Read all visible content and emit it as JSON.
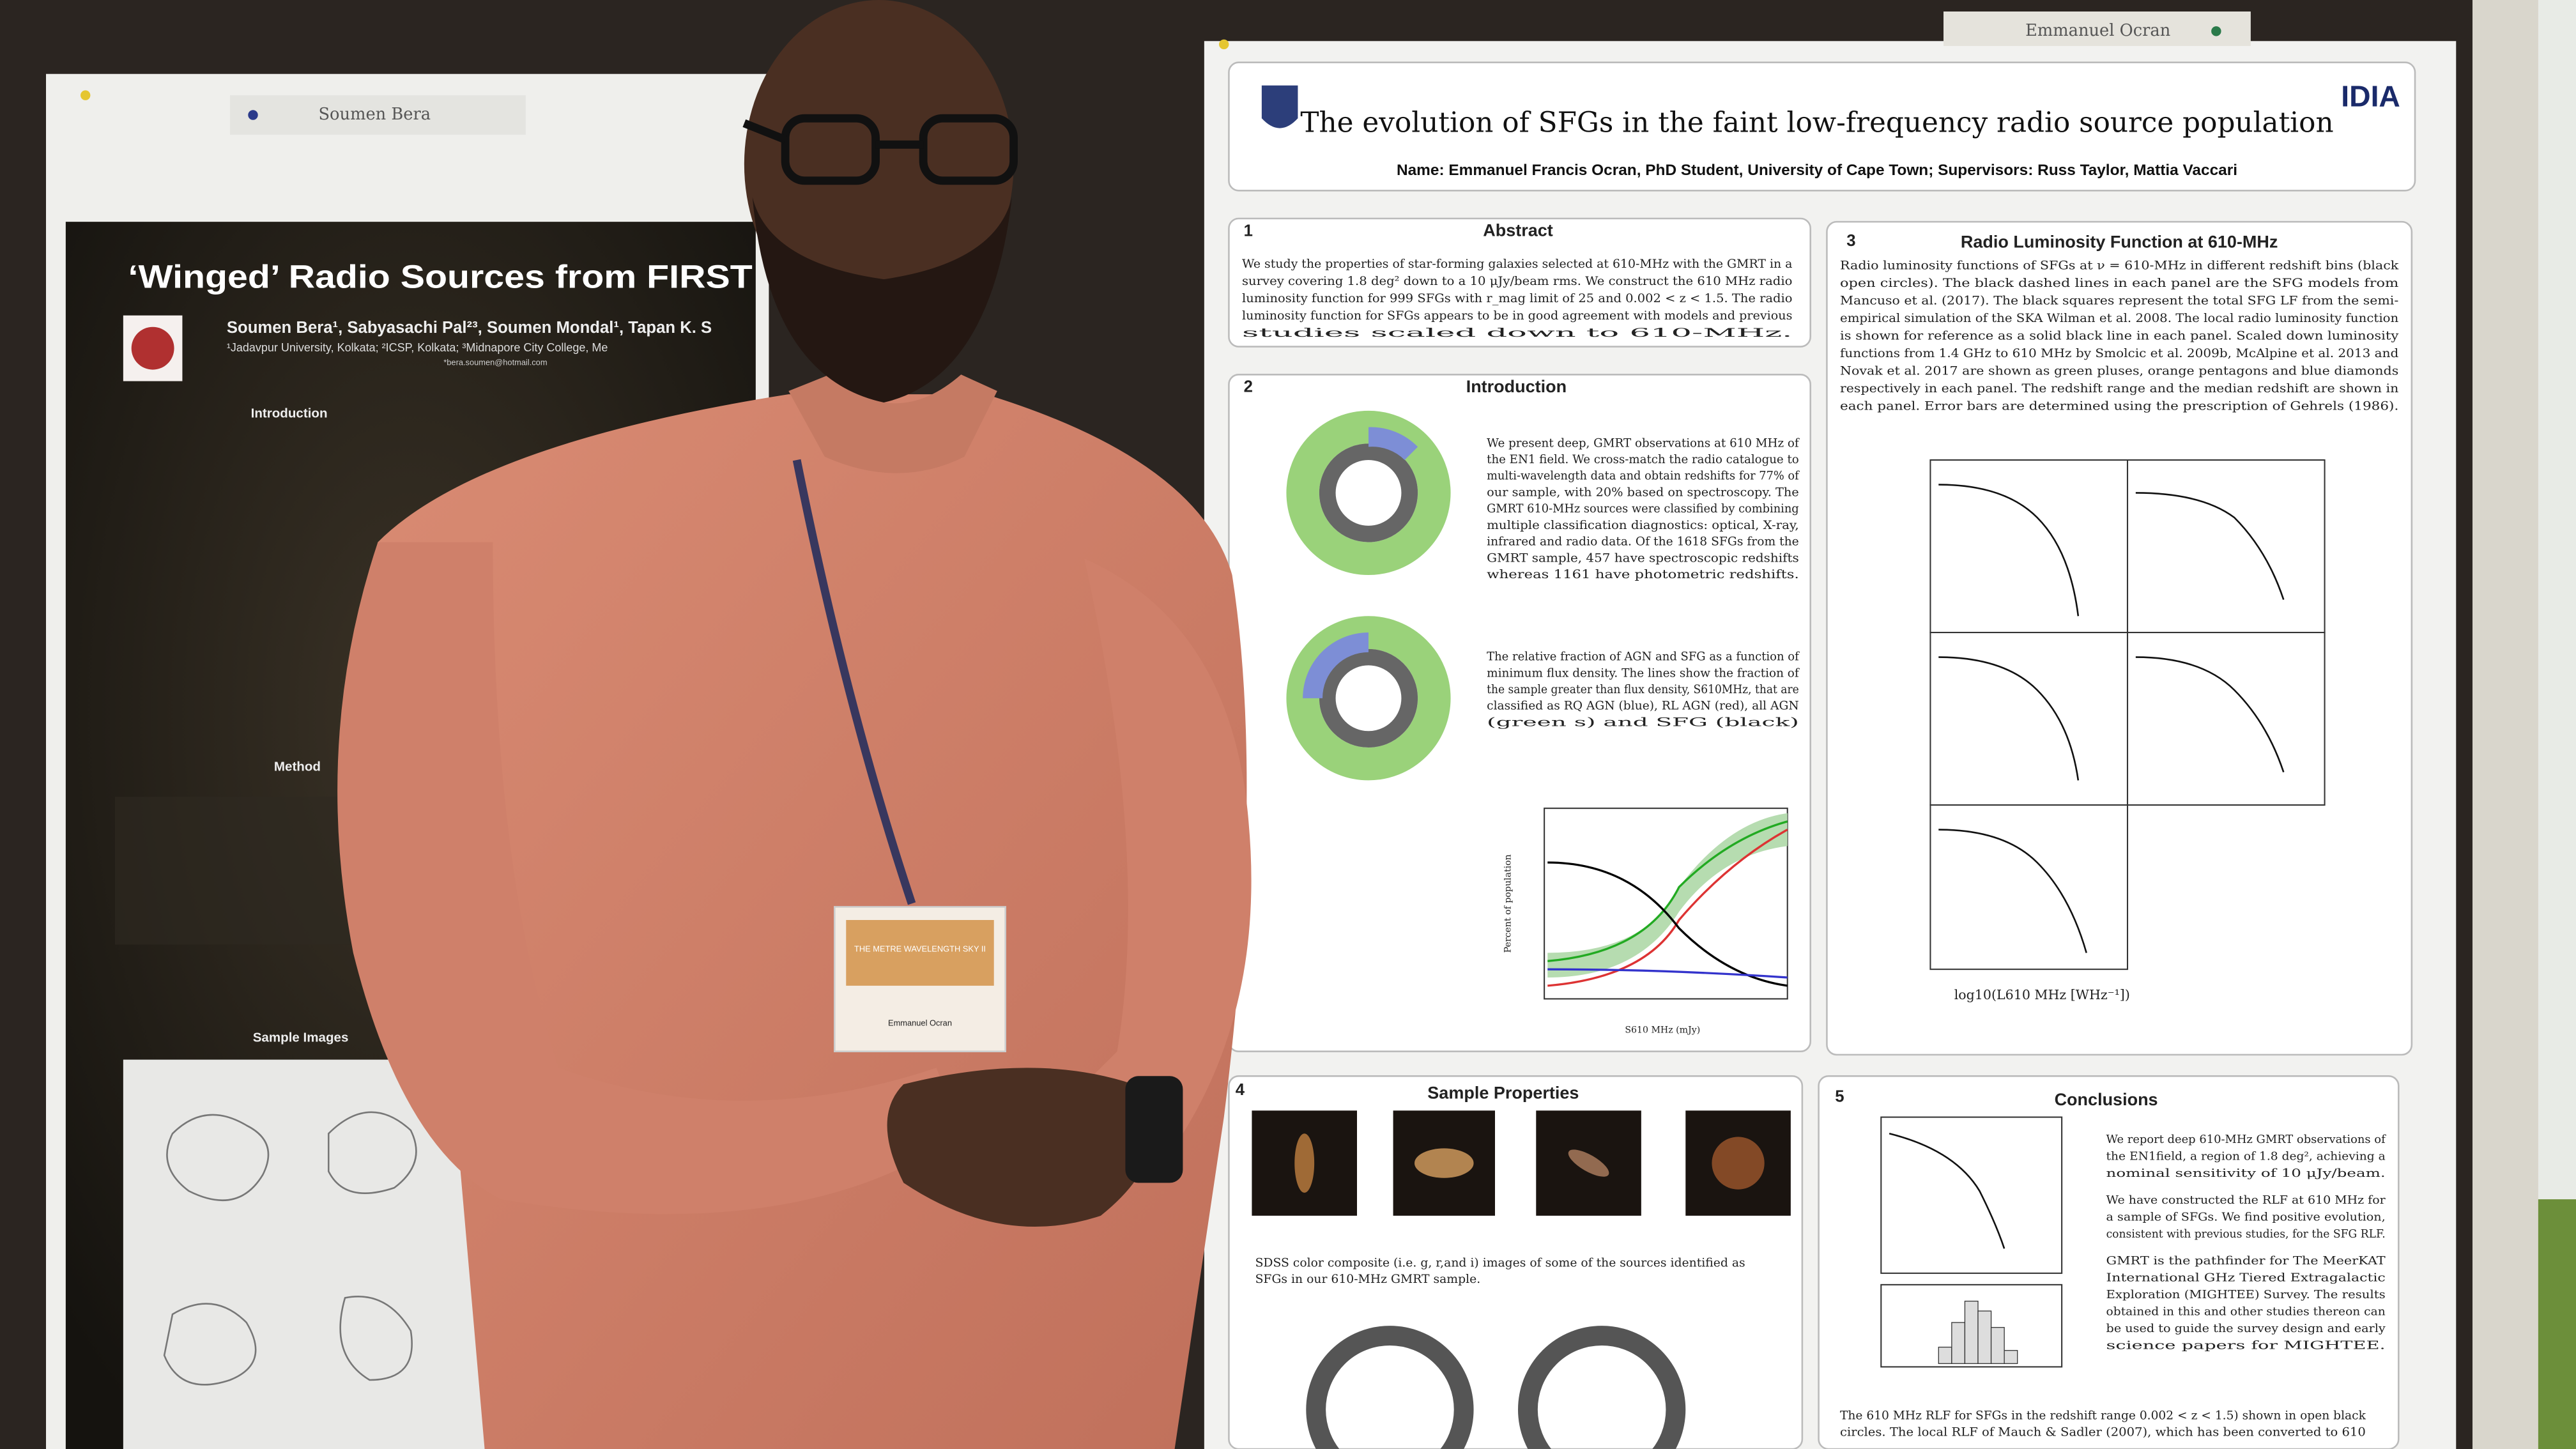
{
  "left_poster": {
    "tag": "Soumen Bera",
    "title": "‘Winged’ Radio Sources from FIRST",
    "authors": "Soumen Bera¹, Sabyasachi Pal²³, Soumen Mondal¹, Tapan K. S",
    "affiliations": "¹Jadavpur University, Kolkata; ²ICSP, Kolkata; ³Midnapore City College, Me",
    "email": "*bera.soumen@hotmail.com",
    "headings": [
      "Introduction",
      "Method",
      "Sample Images"
    ]
  },
  "right_poster": {
    "tag": "Emmanuel Ocran",
    "logo": "IDIA",
    "title": "The evolution of SFGs in the faint low-frequency radio source population",
    "byline": "Name: Emmanuel Francis Ocran, PhD Student, University of Cape Town; Supervisors: Russ Taylor, Mattia Vaccari",
    "sections": [
      {
        "number": "1",
        "heading": "Abstract",
        "lines": [
          "We study the properties of star-forming galaxies selected at 610-MHz with the GMRT in a",
          "survey covering 1.8 deg² down to a 10 μJy/beam rms. We construct the 610 MHz radio",
          "luminosity function for 999 SFGs with r_mag limit of 25 and 0.002 < z < 1.5. The radio",
          "luminosity function for SFGs appears to be in good agreement with models and previous",
          "studies scaled down to 610-MHz."
        ]
      },
      {
        "number": "2",
        "heading": "Introduction",
        "lines": [
          "We present deep, GMRT observations at 610 MHz of",
          "the EN1 field. We cross-match the radio catalogue to",
          "multi-wavelength data and obtain redshifts for 77% of",
          "our sample, with 20% based on spectroscopy. The",
          "GMRT 610-MHz sources were classified by combining",
          "multiple classification diagnostics: optical, X-ray,",
          "infrared and radio data. Of the 1618 SFGs from the",
          "GMRT sample, 457 have spectroscopic redshifts",
          "whereas 1161 have photometric redshifts."
        ],
        "lines2": [
          "The relative fraction of AGN and SFG as a function of",
          "minimum flux density. The lines show the fraction of",
          "the sample greater than flux density, S610MHz, that are",
          "classified as RQ AGN (blue), RL AGN (red), all AGN",
          "(green s) and SFG (black)"
        ],
        "plot_xlabel": "S610 MHz (mJy)",
        "plot_ylabel": "Percent of population"
      },
      {
        "number": "3",
        "heading": "Radio Luminosity Function at 610-MHz",
        "lines": [
          "Radio luminosity functions of SFGs at ν = 610-MHz in different redshift bins (black",
          "open circles). The black dashed lines in each panel are the SFG models from",
          "Mancuso et al. (2017). The black squares represent the total SFG LF from the semi-",
          "empirical simulation of the SKA Wilman et al. 2008. The local radio luminosity function",
          "is shown for reference as a solid black line in each panel. Scaled down luminosity",
          "functions from 1.4 GHz to 610 MHz by Smolcic et al. 2009b, McAlpine et al. 2013 and",
          "Novak et al. 2017 are shown as green pluses, orange pentagons and blue diamonds",
          "respectively in each panel. The redshift range and the median redshift are shown in",
          "each panel. Error bars are determined using the prescription of Gehrels (1986)."
        ],
        "plot_xlabel": "log10(L610 MHz [WHz⁻¹])"
      },
      {
        "number": "4",
        "heading": "Sample Properties",
        "lines": [
          "SDSS color composite (i.e. g, r,and i) images of some of the sources identified as",
          "SFGs in our 610-MHz GMRT sample."
        ]
      },
      {
        "number": "5",
        "heading": "Conclusions",
        "lines": [
          "We report deep 610-MHz GMRT observations of",
          "the EN1field, a region of 1.8 deg², achieving a",
          "nominal sensitivity of 10 μJy/beam.",
          "We have constructed the RLF at 610 MHz  for",
          "a sample of SFGs. We find positive evolution,",
          "consistent with previous studies, for the SFG RLF.",
          "GMRT is the pathfinder for The MeerKAT",
          "International GHz Tiered Extragalactic",
          "Exploration (MIGHTEE) Survey. The results",
          "obtained in this and other studies thereon can",
          "be used to guide the survey design and early",
          "science papers for MIGHTEE."
        ],
        "lines2": [
          "The 610 MHz RLF for SFGs in the redshift range 0.002 < z < 1.5) shown in open black",
          "circles. The local RLF of Mauch & Sadler (2007), which has been converted to 610"
        ]
      }
    ]
  },
  "badge": {
    "title": "THE METRE WAVELENGTH SKY II",
    "name": "Emmanuel Ocran"
  }
}
